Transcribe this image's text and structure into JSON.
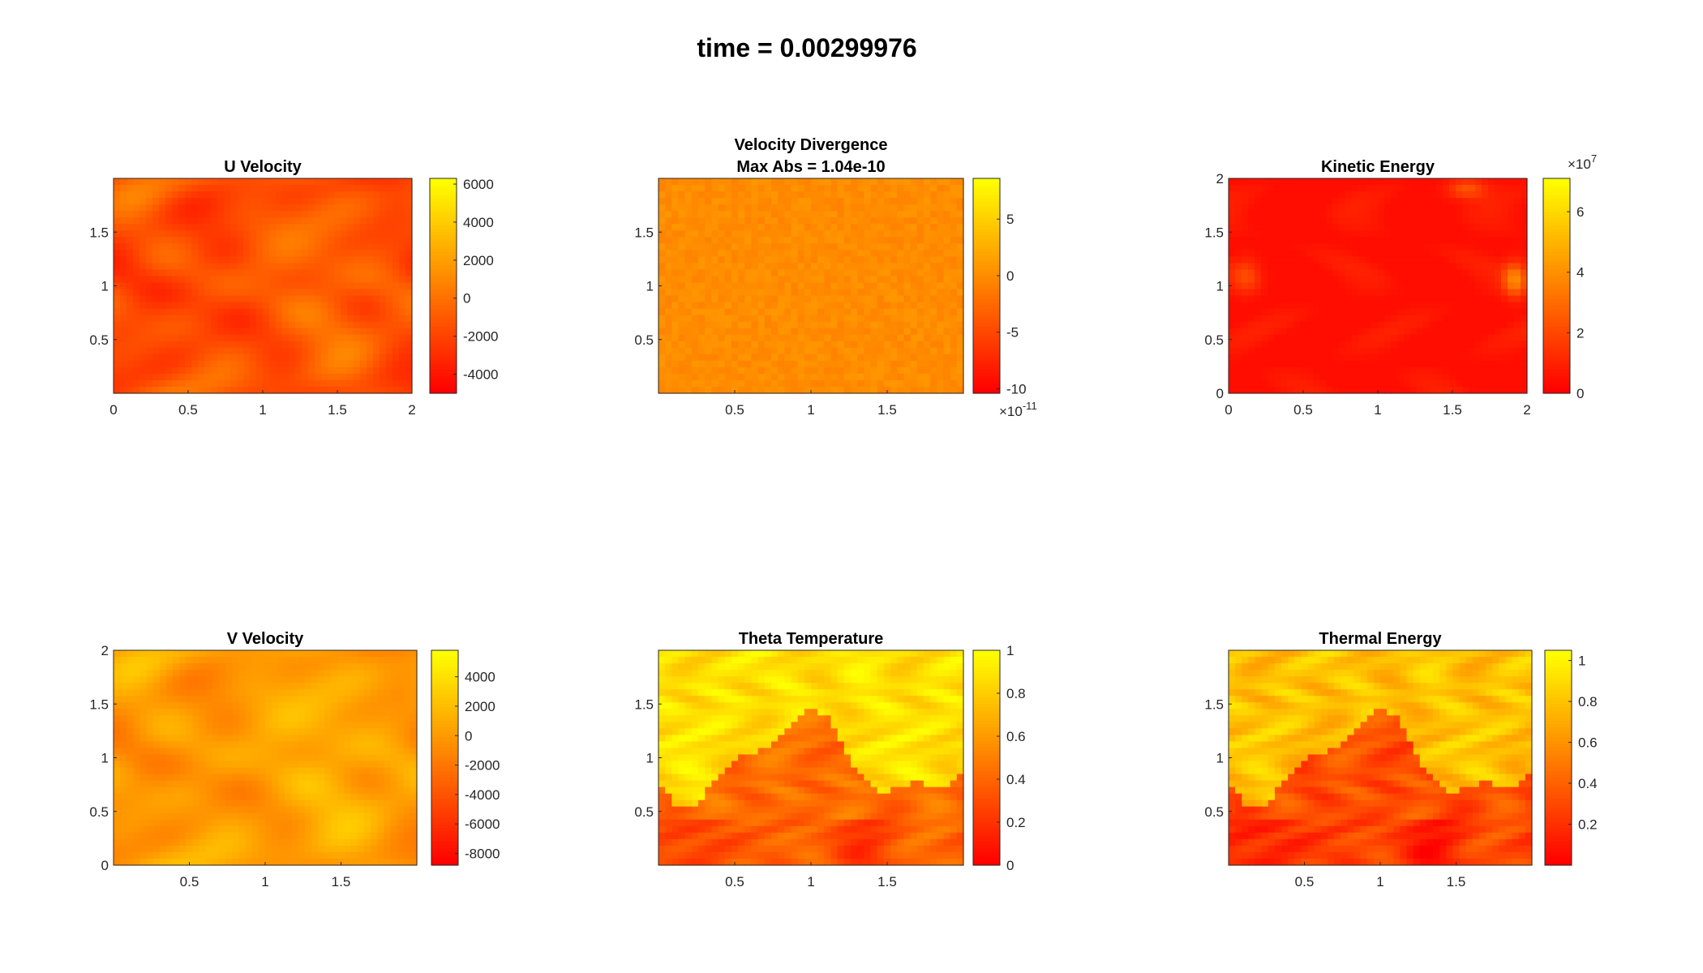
{
  "figure": {
    "super_title": "time = 0.00299976"
  },
  "chart_data": [
    {
      "type": "heatmap",
      "title": [
        "U Velocity"
      ],
      "colormap": "autumn",
      "xlim": [
        0,
        2
      ],
      "ylim": [
        0,
        2
      ],
      "x_ticks": [
        "0",
        "0.5",
        "1",
        "1.5",
        "2"
      ],
      "y_ticks": [
        "0.5",
        "1",
        "1.5"
      ],
      "colorbar": {
        "range": [
          -5000,
          6300
        ],
        "ticks": [
          "-4000",
          "-2000",
          "0",
          "2000",
          "4000",
          "6000"
        ],
        "exponent": ""
      },
      "pattern": "smooth",
      "base_level": 0.32,
      "variation": 0.14
    },
    {
      "type": "heatmap",
      "title": [
        "Velocity Divergence",
        "Max Abs = 1.04e-10"
      ],
      "colormap": "autumn",
      "xlim": [
        0,
        2
      ],
      "ylim": [
        0,
        2
      ],
      "x_ticks": [
        "0.5",
        "1",
        "1.5"
      ],
      "y_ticks": [
        "0.5",
        "1",
        "1.5"
      ],
      "colorbar": {
        "range": [
          -10.4,
          8.6
        ],
        "ticks": [
          "-10",
          "-5",
          "0",
          "5"
        ],
        "exponent": "-11"
      },
      "pattern": "noise",
      "base_level": 0.55,
      "variation": 0.05
    },
    {
      "type": "heatmap",
      "title": [
        "Kinetic Energy"
      ],
      "colormap": "autumn",
      "xlim": [
        0,
        2
      ],
      "ylim": [
        0,
        2
      ],
      "x_ticks": [
        "0",
        "0.5",
        "1",
        "1.5",
        "2"
      ],
      "y_ticks": [
        "0",
        "0.5",
        "1",
        "1.5",
        "2"
      ],
      "colorbar": {
        "range": [
          0,
          7.1
        ],
        "ticks": [
          "0",
          "2",
          "4",
          "6"
        ],
        "exponent": "7"
      },
      "pattern": "energy",
      "base_level": 0.05,
      "variation": 0.05
    },
    {
      "type": "heatmap",
      "title": [
        "V Velocity"
      ],
      "colormap": "autumn",
      "xlim": [
        0,
        2
      ],
      "ylim": [
        0,
        2
      ],
      "x_ticks": [
        "0.5",
        "1",
        "1.5"
      ],
      "y_ticks": [
        "0",
        "0.5",
        "1",
        "1.5",
        "2"
      ],
      "colorbar": {
        "range": [
          -8800,
          5800
        ],
        "ticks": [
          "-8000",
          "-6000",
          "-4000",
          "-2000",
          "0",
          "2000",
          "4000"
        ],
        "exponent": ""
      },
      "pattern": "smooth",
      "base_level": 0.62,
      "variation": 0.12
    },
    {
      "type": "heatmap",
      "title": [
        "Theta Temperature"
      ],
      "colormap": "autumn",
      "xlim": [
        0,
        2
      ],
      "ylim": [
        0,
        2
      ],
      "x_ticks": [
        "0.5",
        "1",
        "1.5"
      ],
      "y_ticks": [
        "0.5",
        "1",
        "1.5"
      ],
      "colorbar": {
        "range": [
          0,
          1
        ],
        "ticks": [
          "0",
          "0.2",
          "0.4",
          "0.6",
          "0.8",
          "1"
        ],
        "exponent": ""
      },
      "pattern": "temperature",
      "base_level": 0.55,
      "variation": 0.35
    },
    {
      "type": "heatmap",
      "title": [
        "Thermal Energy"
      ],
      "colormap": "autumn",
      "xlim": [
        0,
        2
      ],
      "ylim": [
        0,
        2
      ],
      "x_ticks": [
        "0.5",
        "1",
        "1.5"
      ],
      "y_ticks": [
        "0.5",
        "1",
        "1.5"
      ],
      "colorbar": {
        "range": [
          0,
          1.05
        ],
        "ticks": [
          "0.2",
          "0.4",
          "0.6",
          "0.8",
          "1"
        ],
        "exponent": ""
      },
      "pattern": "thermal",
      "base_level": 0.4,
      "variation": 0.4
    }
  ]
}
